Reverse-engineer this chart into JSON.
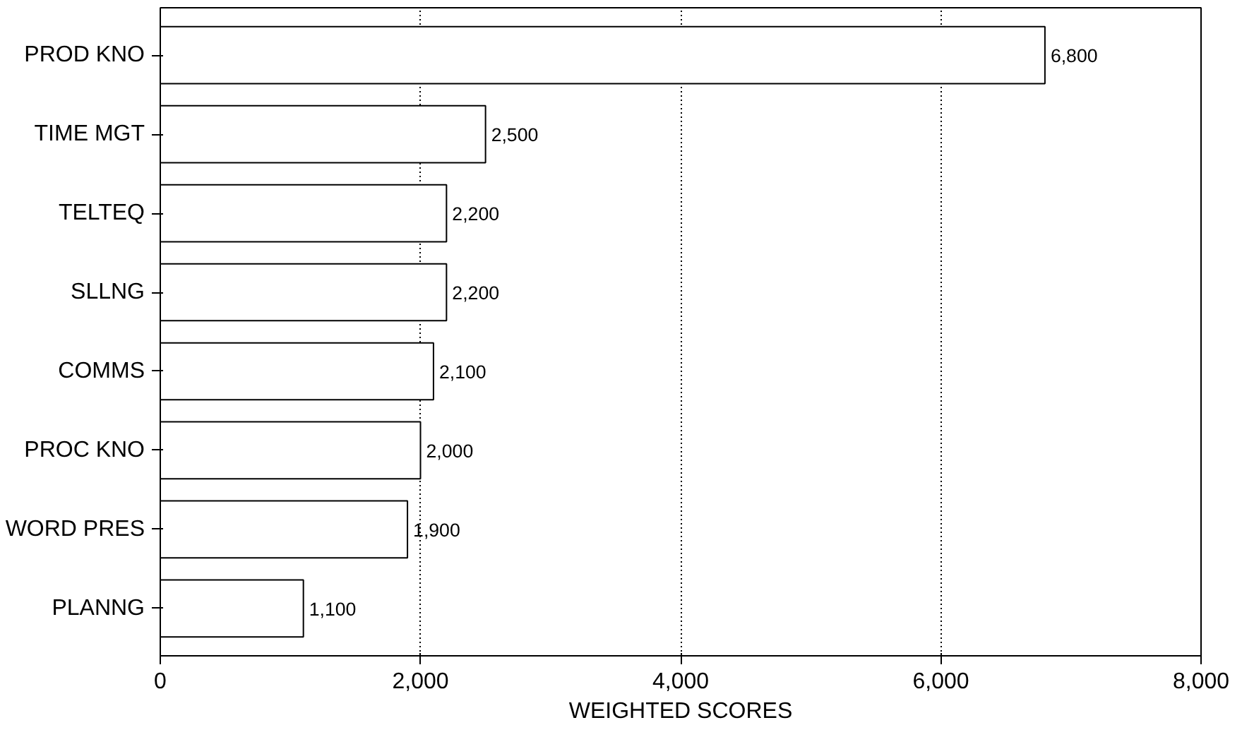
{
  "chart_data": {
    "type": "bar",
    "orientation": "horizontal",
    "xlabel": "WEIGHTED SCORES",
    "categories": [
      "PROD KNO",
      "TIME MGT",
      "TELTEQ",
      "SLLNG",
      "COMMS",
      "PROC KNO",
      "WORD PRES",
      "PLANNG"
    ],
    "values": [
      6800,
      2500,
      2200,
      2200,
      2100,
      2000,
      1900,
      1100
    ],
    "value_labels": [
      "6,800",
      "2,500",
      "2,200",
      "2,200",
      "2,100",
      "2,000",
      "1,900",
      "1,100"
    ],
    "color": "#ffffff",
    "xlim": [
      0,
      8000
    ],
    "xticks": [
      {
        "value": 0,
        "label": "0"
      },
      {
        "value": 2000,
        "label": "2,000"
      },
      {
        "value": 4000,
        "label": "4,000"
      },
      {
        "value": 6000,
        "label": "6,000"
      },
      {
        "value": 8000,
        "label": "8,000"
      }
    ],
    "grid": "x"
  }
}
